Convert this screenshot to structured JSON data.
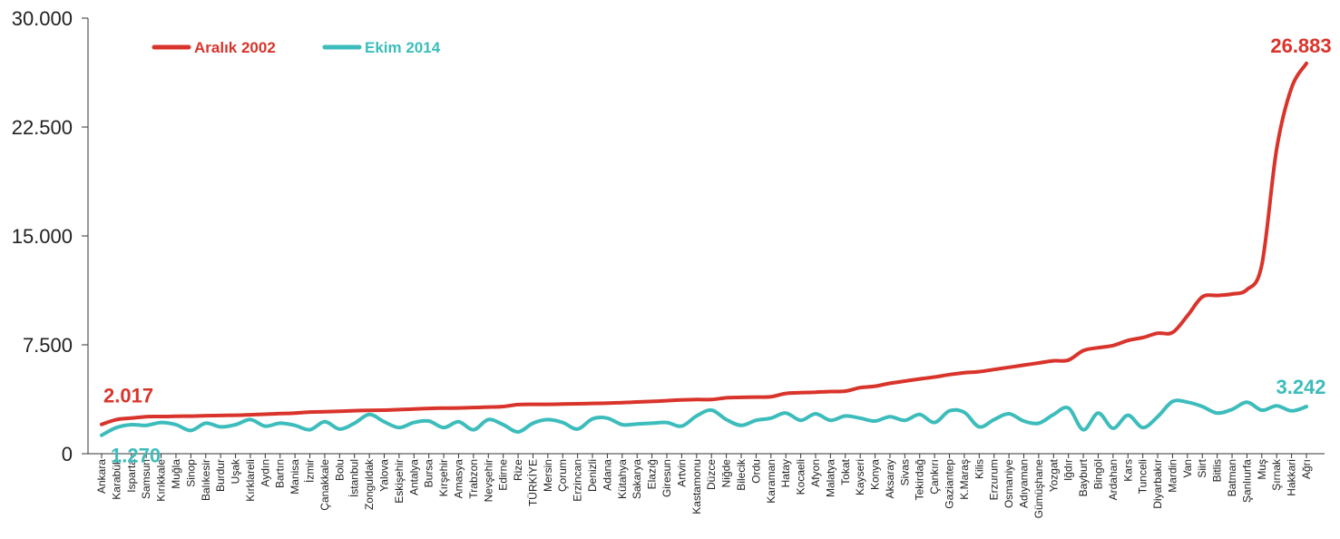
{
  "chart_data": {
    "type": "line",
    "title": "",
    "xlabel": "",
    "ylabel": "",
    "ylim": [
      0,
      30000
    ],
    "y_ticks": [
      "0",
      "7.500",
      "15.000",
      "22.500",
      "30.000"
    ],
    "y_tick_values": [
      0,
      7500,
      15000,
      22500,
      30000
    ],
    "grid": false,
    "legend_position": "top-left",
    "categories": [
      "Ankara",
      "Karabük",
      "Isparta",
      "Samsun",
      "Kırıkkale",
      "Muğla",
      "Sinop",
      "Balıkesir",
      "Burdur",
      "Uşak",
      "Kırklareli",
      "Aydın",
      "Bartın",
      "Manisa",
      "İzmir",
      "Çanakkale",
      "Bolu",
      "İstanbul",
      "Zonguldak",
      "Yalova",
      "Eskişehir",
      "Antalya",
      "Bursa",
      "Kırşehir",
      "Amasya",
      "Trabzon",
      "Nevşehir",
      "Edirne",
      "Rize",
      "TÜRKİYE",
      "Mersin",
      "Çorum",
      "Erzincan",
      "Denizli",
      "Adana",
      "Kütahya",
      "Sakarya",
      "Elazığ",
      "Giresun",
      "Artvin",
      "Kastamonu",
      "Düzce",
      "Niğde",
      "Bilecik",
      "Ordu",
      "Karaman",
      "Hatay",
      "Kocaeli",
      "Afyon",
      "Malatya",
      "Tokat",
      "Kayseri",
      "Konya",
      "Aksaray",
      "Sivas",
      "Tekirdağ",
      "Çankırı",
      "Gaziantep",
      "K.Maraş",
      "Kilis",
      "Erzurum",
      "Osmaniye",
      "Adıyaman",
      "Gümüşhane",
      "Yozgat",
      "Iğdır",
      "Bayburt",
      "Bingöl",
      "Ardahan",
      "Kars",
      "Tunceli",
      "Diyarbakır",
      "Mardin",
      "Van",
      "Siirt",
      "Bitlis",
      "Batman",
      "Şanlıurfa",
      "Muş",
      "Şırnak",
      "Hakkari",
      "Ağrı"
    ],
    "series": [
      {
        "name": "Aralık 2002",
        "color": "#d9342b",
        "values": [
          2017,
          2350,
          2450,
          2550,
          2560,
          2580,
          2590,
          2620,
          2630,
          2650,
          2680,
          2720,
          2760,
          2800,
          2870,
          2890,
          2920,
          2960,
          2990,
          3000,
          3040,
          3080,
          3120,
          3140,
          3150,
          3180,
          3210,
          3250,
          3380,
          3400,
          3400,
          3420,
          3440,
          3460,
          3480,
          3520,
          3560,
          3600,
          3650,
          3700,
          3730,
          3730,
          3850,
          3880,
          3900,
          3920,
          4150,
          4200,
          4240,
          4280,
          4310,
          4550,
          4650,
          4850,
          5000,
          5150,
          5280,
          5450,
          5580,
          5650,
          5800,
          5950,
          6100,
          6250,
          6400,
          6450,
          7100,
          7300,
          7450,
          7800,
          8000,
          8300,
          8350,
          9500,
          10800,
          10900,
          11000,
          11300,
          13000,
          21000,
          25200,
          26883
        ],
        "labels": [
          {
            "index": 0,
            "text": "2.017"
          },
          {
            "index": 81,
            "text": "26.883"
          }
        ]
      },
      {
        "name": "Ekim 2014",
        "color": "#3dbcbc",
        "values": [
          1270,
          1800,
          2000,
          1950,
          2150,
          2000,
          1600,
          2100,
          1850,
          2000,
          2350,
          1900,
          2100,
          1950,
          1650,
          2200,
          1700,
          2100,
          2700,
          2200,
          1800,
          2150,
          2250,
          1800,
          2200,
          1650,
          2350,
          2000,
          1500,
          2100,
          2350,
          2150,
          1700,
          2400,
          2450,
          2000,
          2050,
          2100,
          2150,
          1900,
          2600,
          3000,
          2350,
          1950,
          2300,
          2450,
          2800,
          2300,
          2750,
          2300,
          2600,
          2450,
          2250,
          2550,
          2300,
          2700,
          2150,
          2950,
          2850,
          1850,
          2350,
          2750,
          2250,
          2100,
          2700,
          3150,
          1650,
          2800,
          1750,
          2650,
          1800,
          2550,
          3600,
          3550,
          3250,
          2800,
          3050,
          3550,
          3000,
          3300,
          2950,
          3242
        ],
        "labels": [
          {
            "index": 0,
            "text": "1.270"
          },
          {
            "index": 81,
            "text": "3.242"
          }
        ]
      }
    ]
  }
}
